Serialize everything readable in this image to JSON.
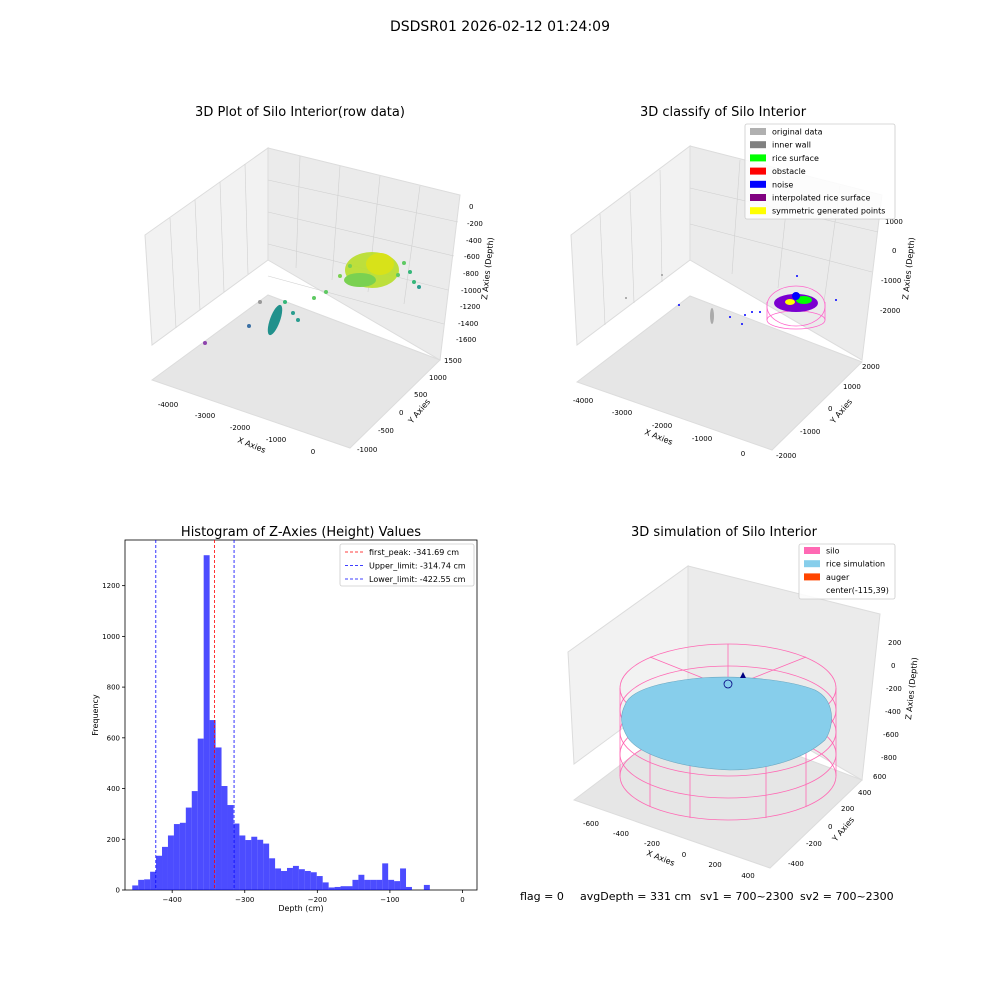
{
  "figure": {
    "suptitle": "DSDSR01 2026-02-12 01:24:09",
    "footer": {
      "flag": "flag = 0",
      "avg_depth": "avgDepth = 331 cm",
      "sv1": "sv1 = 700~2300",
      "sv2": "sv2 = 700~2300"
    }
  },
  "panel_raw": {
    "title": "3D Plot of Silo Interior(row data)",
    "xlabel": "X Axies",
    "ylabel": "Y Axies",
    "zlabel": "Z Axies (Depth)",
    "x_ticks": [
      "-4000",
      "-3000",
      "-2000",
      "-1000",
      "0"
    ],
    "y_ticks": [
      "-1000",
      "-500",
      "0",
      "500",
      "1000",
      "1500"
    ],
    "z_ticks": [
      "0",
      "-200",
      "-400",
      "-600",
      "-800",
      "-1000",
      "-1200",
      "-1400",
      "-1600"
    ]
  },
  "panel_classify": {
    "title": "3D classify of Silo Interior",
    "xlabel": "X Axies",
    "ylabel": "Y Axies",
    "zlabel": "Z Axies (Depth)",
    "x_ticks": [
      "-4000",
      "-3000",
      "-2000",
      "-1000",
      "0"
    ],
    "y_ticks": [
      "-2000",
      "-1000",
      "0",
      "1000",
      "2000"
    ],
    "z_ticks": [
      "1000",
      "0",
      "-1000",
      "-2000"
    ],
    "legend": [
      {
        "label": "original data",
        "color": "#b0b0b0"
      },
      {
        "label": "inner wall",
        "color": "#808080"
      },
      {
        "label": "rice surface",
        "color": "#00ff00"
      },
      {
        "label": "obstacle",
        "color": "#ff0000"
      },
      {
        "label": "noise",
        "color": "#0000ff"
      },
      {
        "label": "interpolated rice surface",
        "color": "#800080"
      },
      {
        "label": "symmetric generated points",
        "color": "#ffff00"
      }
    ]
  },
  "panel_sim": {
    "title": "3D simulation of Silo Interior",
    "xlabel": "X Axies",
    "ylabel": "Y Axies",
    "zlabel": "Z Axies (Depth)",
    "x_ticks": [
      "-600",
      "-400",
      "-200",
      "0",
      "200",
      "400"
    ],
    "y_ticks": [
      "-400",
      "-200",
      "0",
      "200",
      "400",
      "600"
    ],
    "z_ticks": [
      "200",
      "0",
      "-200",
      "-400",
      "-600",
      "-800"
    ],
    "legend": [
      {
        "label": "silo",
        "color": "#ff69b4"
      },
      {
        "label": "rice simulation",
        "color": "#87ceeb"
      },
      {
        "label": "auger",
        "color": "#ff4500"
      },
      {
        "label": "center(-115,39)",
        "color": ""
      }
    ]
  },
  "chart_data": {
    "type": "bar",
    "title": "Histogram of Z-Axies (Height) Values",
    "xlabel": "Depth (cm)",
    "ylabel": "Frequency",
    "xlim": [
      -465,
      20
    ],
    "ylim": [
      0,
      1380
    ],
    "x_ticks": [
      -400,
      -300,
      -200,
      -100,
      0
    ],
    "y_ticks": [
      0,
      200,
      400,
      600,
      800,
      1000,
      1200
    ],
    "bar_color": "#0000ff",
    "bin_start": -455,
    "bin_width": 8.2,
    "values": [
      18,
      40,
      42,
      72,
      135,
      170,
      215,
      260,
      265,
      325,
      390,
      597,
      1320,
      670,
      562,
      410,
      335,
      262,
      215,
      197,
      210,
      198,
      183,
      125,
      85,
      75,
      87,
      95,
      82,
      75,
      70,
      55,
      30,
      10,
      12,
      15,
      15,
      40,
      60,
      40,
      40,
      40,
      105,
      40,
      35,
      85,
      12,
      0,
      0,
      20
    ],
    "vlines": [
      {
        "label": "first_peak: -341.69 cm",
        "x": -341.69,
        "color": "#ff0000"
      },
      {
        "label": "Upper_limit: -314.74 cm",
        "x": -314.74,
        "color": "#0000ff"
      },
      {
        "label": "Lower_limit: -422.55 cm",
        "x": -422.55,
        "color": "#0000ff"
      }
    ],
    "legend_position": "upper right"
  }
}
